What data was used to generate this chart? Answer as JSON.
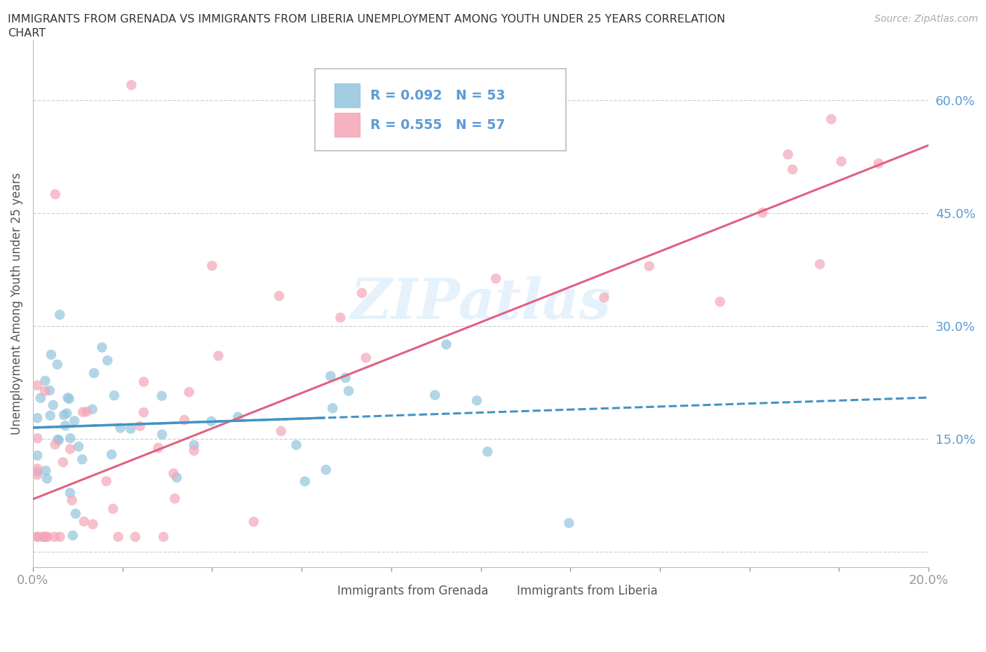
{
  "title_line1": "IMMIGRANTS FROM GRENADA VS IMMIGRANTS FROM LIBERIA UNEMPLOYMENT AMONG YOUTH UNDER 25 YEARS CORRELATION",
  "title_line2": "CHART",
  "source_text": "Source: ZipAtlas.com",
  "ylabel": "Unemployment Among Youth under 25 years",
  "xlim": [
    0.0,
    0.2
  ],
  "ylim": [
    -0.02,
    0.68
  ],
  "xticks": [
    0.0,
    0.02,
    0.04,
    0.06,
    0.08,
    0.1,
    0.12,
    0.14,
    0.16,
    0.18,
    0.2
  ],
  "xticklabels": [
    "0.0%",
    "",
    "",
    "",
    "",
    "",
    "",
    "",
    "",
    "",
    "20.0%"
  ],
  "yticks": [
    0.0,
    0.15,
    0.3,
    0.45,
    0.6
  ],
  "yticklabels": [
    "",
    "15.0%",
    "30.0%",
    "45.0%",
    "60.0%"
  ],
  "grenada_color": "#92c5de",
  "liberia_color": "#f4a6b8",
  "trend_grenada_color": "#4393c3",
  "trend_liberia_color": "#e06080",
  "axis_label_color": "#5b9bd5",
  "watermark": "ZIPatlas",
  "legend_text_color": "#333333",
  "legend_R_color": "#5b9bd5",
  "legend_N_color": "#5b9bd5",
  "background_color": "#ffffff",
  "grid_color": "#d0d0d0",
  "legend_R_grenada": "R = 0.092",
  "legend_N_grenada": "N = 53",
  "legend_R_liberia": "R = 0.555",
  "legend_N_liberia": "N = 57",
  "bottom_legend_grenada": "Immigrants from Grenada",
  "bottom_legend_liberia": "Immigrants from Liberia"
}
